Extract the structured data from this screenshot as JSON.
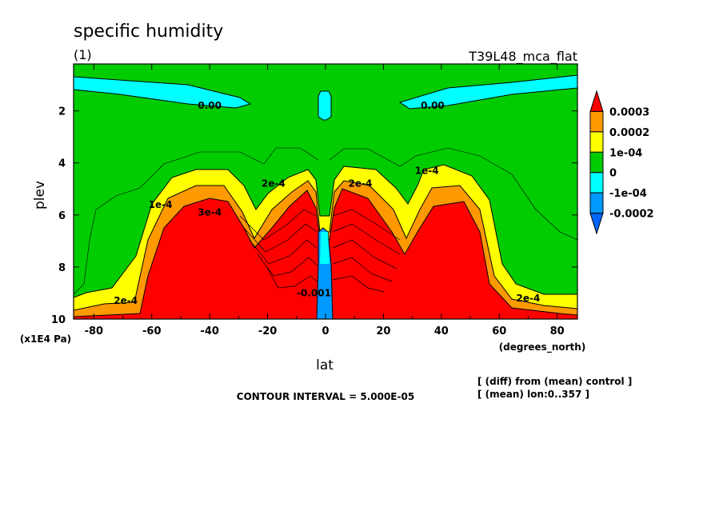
{
  "chart_data": {
    "type": "heatmap",
    "title": "specific humidity",
    "subtitle": "(1)",
    "experiment": "T39L48_mca_flat",
    "xlabel": "lat",
    "xunits": "(degrees_north)",
    "ylabel": "plev",
    "yunits": "(x1E4 Pa)",
    "xlim": [
      -87,
      87
    ],
    "ylim": [
      10,
      0.2
    ],
    "y_inverted": true,
    "x_ticks": [
      "-80",
      "-60",
      "-40",
      "-20",
      "0",
      "20",
      "40",
      "60",
      "80"
    ],
    "x_tick_values": [
      -80,
      -60,
      -40,
      -20,
      0,
      20,
      40,
      60,
      80
    ],
    "y_ticks": [
      "2",
      "4",
      "6",
      "8",
      "10"
    ],
    "y_tick_values": [
      2,
      4,
      6,
      8,
      10
    ],
    "contour_interval_text": "CONTOUR INTERVAL = 5.000E-05",
    "notes": [
      "[ (diff) from (mean) control ]",
      "[ (mean) lon:0..357 ]"
    ],
    "colorbar": {
      "labels": [
        "0.0003",
        "0.0002",
        "1e-04",
        "0",
        "-1e-04",
        "-0.0002"
      ],
      "levels": [
        0.0003,
        0.0002,
        0.0001,
        0,
        -0.0001,
        -0.0002
      ],
      "colors": [
        "#ff0000",
        "#ff9900",
        "#ffff00",
        "#00cc00",
        "#00ffff",
        "#0099ff",
        "#0066ff"
      ]
    },
    "contour_labels": [
      {
        "text": "0.00",
        "lat": -40,
        "plev": 1.8
      },
      {
        "text": "0.00",
        "lat": 37,
        "plev": 1.8
      },
      {
        "text": "1e-4",
        "lat": -57,
        "plev": 5.6
      },
      {
        "text": "1e-4",
        "lat": 35,
        "plev": 4.3
      },
      {
        "text": "2e-4",
        "lat": -18,
        "plev": 4.8
      },
      {
        "text": "2e-4",
        "lat": 12,
        "plev": 4.8
      },
      {
        "text": "3e-4",
        "lat": -40,
        "plev": 5.9
      },
      {
        "text": "2e-4",
        "lat": -69,
        "plev": 9.3
      },
      {
        "text": "2e-4",
        "lat": 70,
        "plev": 9.2
      },
      {
        "text": "-0.001",
        "lat": -4,
        "plev": 9.0
      }
    ]
  }
}
